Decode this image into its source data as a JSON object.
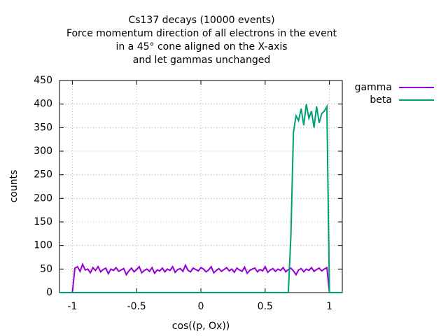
{
  "chart_data": {
    "type": "line",
    "title": [
      "Cs137 decays (10000 events)",
      "Force momentum direction of all electrons in the event",
      "in a 45° cone aligned on the X-axis",
      "and let gammas unchanged"
    ],
    "x_label": "cos((p, Ox))",
    "y_label": "counts",
    "x": [
      -1.1,
      -1,
      -0.98,
      -0.96,
      -0.94,
      -0.92,
      -0.9,
      -0.88,
      -0.86,
      -0.84,
      -0.82,
      -0.8,
      -0.78,
      -0.76,
      -0.74,
      -0.72,
      -0.7,
      -0.68,
      -0.66,
      -0.64,
      -0.62,
      -0.6,
      -0.58,
      -0.56,
      -0.54,
      -0.52,
      -0.5,
      -0.48,
      -0.46,
      -0.44,
      -0.42,
      -0.4,
      -0.38,
      -0.36,
      -0.34,
      -0.32,
      -0.3,
      -0.28,
      -0.26,
      -0.24,
      -0.22,
      -0.2,
      -0.18,
      -0.16,
      -0.14,
      -0.12,
      -0.1,
      -0.08,
      -0.06,
      -0.04,
      -0.02,
      0,
      0.02,
      0.04,
      0.06,
      0.08,
      0.1,
      0.12,
      0.14,
      0.16,
      0.18,
      0.2,
      0.22,
      0.24,
      0.26,
      0.28,
      0.3,
      0.32,
      0.34,
      0.36,
      0.38,
      0.4,
      0.42,
      0.44,
      0.46,
      0.48,
      0.5,
      0.52,
      0.54,
      0.56,
      0.58,
      0.6,
      0.62,
      0.64,
      0.66,
      0.68,
      0.7,
      0.72,
      0.74,
      0.76,
      0.78,
      0.8,
      0.82,
      0.84,
      0.86,
      0.88,
      0.9,
      0.92,
      0.94,
      0.96,
      0.98,
      1,
      1.1
    ],
    "series": [
      {
        "name": "gamma",
        "color": "#9400d3",
        "values": [
          0,
          0,
          52,
          55,
          45,
          60,
          48,
          50,
          42,
          53,
          47,
          55,
          44,
          49,
          52,
          40,
          50,
          47,
          53,
          45,
          48,
          51,
          38,
          46,
          52,
          44,
          49,
          55,
          42,
          47,
          50,
          45,
          53,
          41,
          48,
          46,
          52,
          44,
          50,
          47,
          55,
          43,
          49,
          51,
          45,
          58,
          47,
          44,
          52,
          49,
          46,
          53,
          50,
          44,
          48,
          55,
          42,
          47,
          51,
          45,
          49,
          53,
          46,
          50,
          43,
          52,
          48,
          45,
          54,
          41,
          47,
          50,
          52,
          44,
          49,
          46,
          55,
          43,
          48,
          51,
          45,
          50,
          47,
          53,
          44,
          49,
          52,
          46,
          38,
          48,
          51,
          44,
          50,
          47,
          53,
          45,
          49,
          52,
          46,
          50,
          53,
          0,
          0
        ]
      },
      {
        "name": "beta",
        "color": "#009e73",
        "values": [
          0,
          0,
          0,
          0,
          0,
          0,
          0,
          0,
          0,
          0,
          0,
          0,
          0,
          0,
          0,
          0,
          0,
          0,
          0,
          0,
          0,
          0,
          0,
          0,
          0,
          0,
          0,
          0,
          0,
          0,
          0,
          0,
          0,
          0,
          0,
          0,
          0,
          0,
          0,
          0,
          0,
          0,
          0,
          0,
          0,
          0,
          0,
          0,
          0,
          0,
          0,
          0,
          0,
          0,
          0,
          0,
          0,
          0,
          0,
          0,
          0,
          0,
          0,
          0,
          0,
          0,
          0,
          0,
          0,
          0,
          0,
          0,
          0,
          0,
          0,
          0,
          0,
          0,
          0,
          0,
          0,
          0,
          0,
          0,
          0,
          0,
          120,
          340,
          375,
          365,
          390,
          355,
          400,
          370,
          385,
          350,
          395,
          360,
          380,
          385,
          395,
          0,
          0
        ]
      }
    ],
    "xlim": [
      -1.1,
      1.1
    ],
    "ylim": [
      0,
      450
    ],
    "xticks": [
      -1,
      -0.5,
      0,
      0.5,
      1
    ],
    "yticks": [
      0,
      50,
      100,
      150,
      200,
      250,
      300,
      350,
      400,
      450
    ],
    "grid": true,
    "legend": "outside-top-right"
  }
}
